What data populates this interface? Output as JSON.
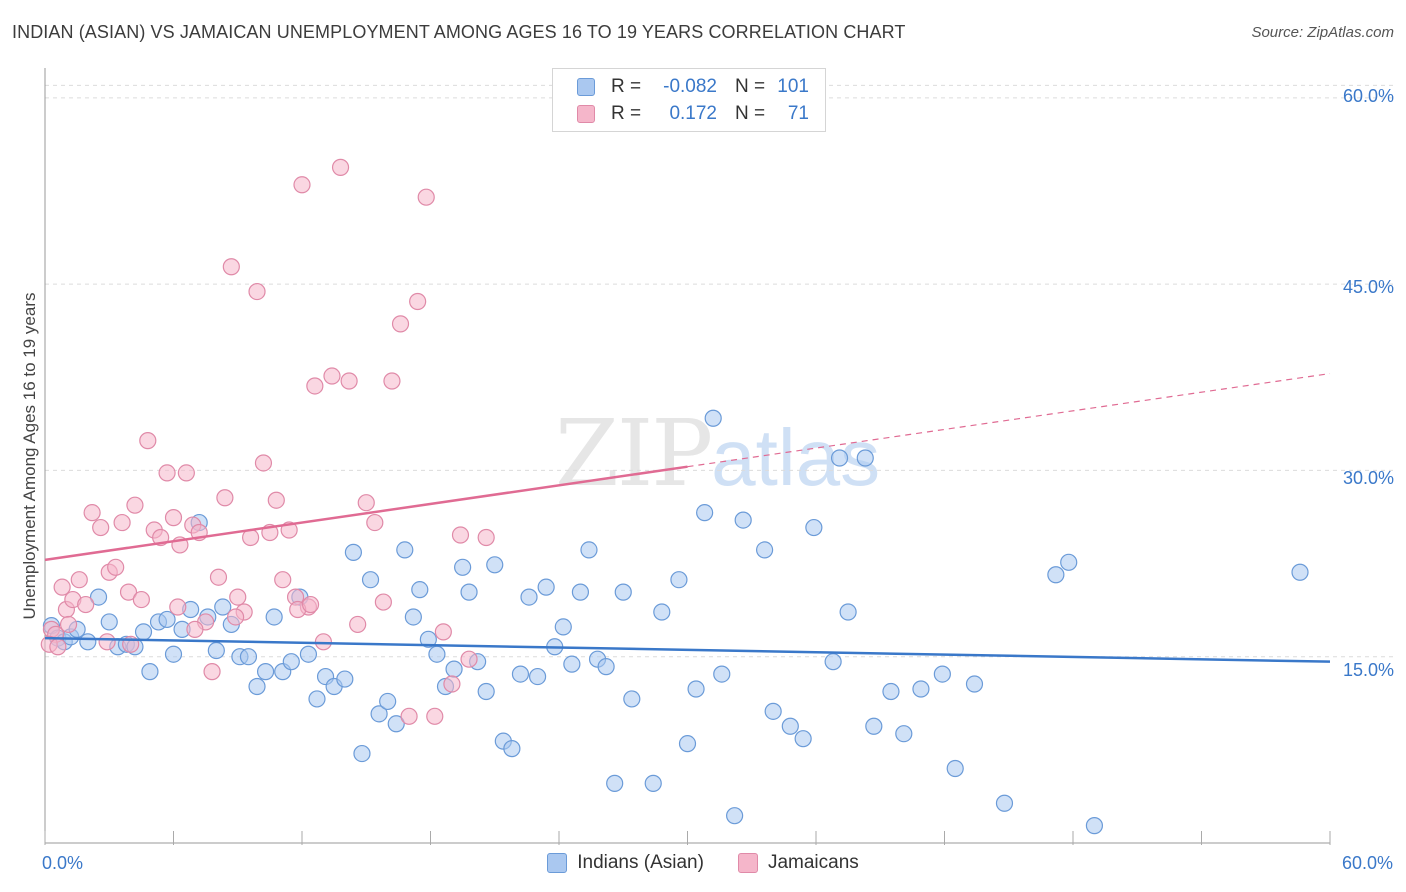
{
  "title": "INDIAN (ASIAN) VS JAMAICAN UNEMPLOYMENT AMONG AGES 16 TO 19 YEARS CORRELATION CHART",
  "source": "Source: ZipAtlas.com",
  "watermark": {
    "zip": "ZIP",
    "atlas": "atlas"
  },
  "colors": {
    "blue": "#3a78c9",
    "blue_fill": "#aac8f0",
    "pink": "#e06b93",
    "pink_fill": "#f5b6ca",
    "grid": "#dddddd"
  },
  "legend": {
    "rows": [
      {
        "r_label": "R =",
        "r_value": "-0.082",
        "n_label": "N =",
        "n_value": "101",
        "color": "#aac8f0",
        "border": "#6b9bd8"
      },
      {
        "r_label": "R =",
        "r_value": "0.172",
        "n_label": "N =",
        "n_value": "71",
        "color": "#f5b6ca",
        "border": "#e08aa8"
      }
    ]
  },
  "chart_data": {
    "type": "scatter",
    "xlabel": "",
    "ylabel": "Unemployment Among Ages 16 to 19 years",
    "xlim": [
      0,
      60
    ],
    "ylim": [
      0,
      62
    ],
    "x_tick_labels": [
      "0.0%",
      "60.0%"
    ],
    "y_tick_labels": [
      "15.0%",
      "30.0%",
      "45.0%",
      "60.0%"
    ],
    "y_ticks": [
      15,
      30,
      45,
      60
    ],
    "grid": true,
    "legend_position": "bottom",
    "series": [
      {
        "name": "Indians (Asian)",
        "color": "#3a78c9",
        "trend": {
          "x": [
            0,
            60
          ],
          "y": [
            16.5,
            14.6
          ]
        },
        "points": [
          [
            0.3,
            17.5
          ],
          [
            0.6,
            16.5
          ],
          [
            0.9,
            16.2
          ],
          [
            1.2,
            16.6
          ],
          [
            1.5,
            17.2
          ],
          [
            2.0,
            16.2
          ],
          [
            2.5,
            19.8
          ],
          [
            3.0,
            17.8
          ],
          [
            3.4,
            15.8
          ],
          [
            3.8,
            16.0
          ],
          [
            4.2,
            15.8
          ],
          [
            4.6,
            17.0
          ],
          [
            4.9,
            13.8
          ],
          [
            5.3,
            17.8
          ],
          [
            5.7,
            18.0
          ],
          [
            6.0,
            15.2
          ],
          [
            6.4,
            17.2
          ],
          [
            6.8,
            18.8
          ],
          [
            7.2,
            25.8
          ],
          [
            7.6,
            18.2
          ],
          [
            8.0,
            15.5
          ],
          [
            8.3,
            19.0
          ],
          [
            8.7,
            17.6
          ],
          [
            9.1,
            15.0
          ],
          [
            9.5,
            15.0
          ],
          [
            9.9,
            12.6
          ],
          [
            10.3,
            13.8
          ],
          [
            10.7,
            18.2
          ],
          [
            11.1,
            13.8
          ],
          [
            11.5,
            14.6
          ],
          [
            11.9,
            19.8
          ],
          [
            12.3,
            15.2
          ],
          [
            12.7,
            11.6
          ],
          [
            13.1,
            13.4
          ],
          [
            13.5,
            12.6
          ],
          [
            14.0,
            13.2
          ],
          [
            14.4,
            23.4
          ],
          [
            14.8,
            7.2
          ],
          [
            15.2,
            21.2
          ],
          [
            15.6,
            10.4
          ],
          [
            16.0,
            11.4
          ],
          [
            16.4,
            9.6
          ],
          [
            16.8,
            23.6
          ],
          [
            17.2,
            18.2
          ],
          [
            17.5,
            20.4
          ],
          [
            17.9,
            16.4
          ],
          [
            18.3,
            15.2
          ],
          [
            18.7,
            12.6
          ],
          [
            19.1,
            14.0
          ],
          [
            19.5,
            22.2
          ],
          [
            19.8,
            20.2
          ],
          [
            20.2,
            14.6
          ],
          [
            20.6,
            12.2
          ],
          [
            21.0,
            22.4
          ],
          [
            21.4,
            8.2
          ],
          [
            21.8,
            7.6
          ],
          [
            22.2,
            13.6
          ],
          [
            22.6,
            19.8
          ],
          [
            23.0,
            13.4
          ],
          [
            23.4,
            20.6
          ],
          [
            23.8,
            15.8
          ],
          [
            24.2,
            17.4
          ],
          [
            24.6,
            14.4
          ],
          [
            25.0,
            20.2
          ],
          [
            25.4,
            23.6
          ],
          [
            25.8,
            14.8
          ],
          [
            26.2,
            14.2
          ],
          [
            26.6,
            4.8
          ],
          [
            27.0,
            20.2
          ],
          [
            27.4,
            11.6
          ],
          [
            28.4,
            4.8
          ],
          [
            28.8,
            18.6
          ],
          [
            29.6,
            21.2
          ],
          [
            30.0,
            8.0
          ],
          [
            30.4,
            12.4
          ],
          [
            30.8,
            26.6
          ],
          [
            31.2,
            34.2
          ],
          [
            31.6,
            13.6
          ],
          [
            32.2,
            2.2
          ],
          [
            32.6,
            26.0
          ],
          [
            33.6,
            23.6
          ],
          [
            34.0,
            10.6
          ],
          [
            34.8,
            9.4
          ],
          [
            35.4,
            8.4
          ],
          [
            35.9,
            25.4
          ],
          [
            36.8,
            14.6
          ],
          [
            37.1,
            31.0
          ],
          [
            37.5,
            18.6
          ],
          [
            38.3,
            31.0
          ],
          [
            38.7,
            9.4
          ],
          [
            39.5,
            12.2
          ],
          [
            40.1,
            8.8
          ],
          [
            40.9,
            12.4
          ],
          [
            41.9,
            13.6
          ],
          [
            42.5,
            6.0
          ],
          [
            43.4,
            12.8
          ],
          [
            44.8,
            3.2
          ],
          [
            47.2,
            21.6
          ],
          [
            47.8,
            22.6
          ],
          [
            49.0,
            1.4
          ],
          [
            58.6,
            21.8
          ]
        ]
      },
      {
        "name": "Jamaicans",
        "color": "#e06b93",
        "trend": {
          "x": [
            0,
            60
          ],
          "y": [
            22.8,
            37.8
          ],
          "solid_until_x": 30
        },
        "points": [
          [
            0.3,
            17.2
          ],
          [
            0.5,
            16.8
          ],
          [
            0.8,
            20.6
          ],
          [
            1.0,
            18.8
          ],
          [
            1.3,
            19.6
          ],
          [
            1.6,
            21.2
          ],
          [
            1.9,
            19.2
          ],
          [
            2.2,
            26.6
          ],
          [
            2.6,
            25.4
          ],
          [
            3.0,
            21.8
          ],
          [
            3.3,
            22.2
          ],
          [
            3.6,
            25.8
          ],
          [
            3.9,
            20.2
          ],
          [
            4.2,
            27.2
          ],
          [
            4.5,
            19.6
          ],
          [
            4.8,
            32.4
          ],
          [
            5.1,
            25.2
          ],
          [
            5.4,
            24.6
          ],
          [
            5.7,
            29.8
          ],
          [
            6.0,
            26.2
          ],
          [
            6.3,
            24.0
          ],
          [
            6.6,
            29.8
          ],
          [
            6.9,
            25.6
          ],
          [
            7.2,
            25.0
          ],
          [
            7.5,
            17.8
          ],
          [
            7.8,
            13.8
          ],
          [
            8.1,
            21.4
          ],
          [
            8.4,
            27.8
          ],
          [
            8.7,
            46.4
          ],
          [
            9.0,
            19.8
          ],
          [
            9.3,
            18.6
          ],
          [
            9.6,
            24.6
          ],
          [
            9.9,
            44.4
          ],
          [
            10.2,
            30.6
          ],
          [
            10.5,
            25.0
          ],
          [
            10.8,
            27.6
          ],
          [
            11.1,
            21.2
          ],
          [
            11.4,
            25.2
          ],
          [
            11.7,
            19.8
          ],
          [
            12.0,
            53.0
          ],
          [
            12.3,
            19.0
          ],
          [
            12.6,
            36.8
          ],
          [
            13.0,
            16.2
          ],
          [
            13.4,
            37.6
          ],
          [
            13.8,
            54.4
          ],
          [
            14.2,
            37.2
          ],
          [
            14.6,
            17.6
          ],
          [
            15.0,
            27.4
          ],
          [
            15.4,
            25.8
          ],
          [
            15.8,
            19.4
          ],
          [
            16.2,
            37.2
          ],
          [
            16.6,
            41.8
          ],
          [
            17.0,
            10.2
          ],
          [
            17.4,
            43.6
          ],
          [
            17.8,
            52.0
          ],
          [
            18.2,
            10.2
          ],
          [
            18.6,
            17.0
          ],
          [
            19.0,
            12.8
          ],
          [
            19.4,
            24.8
          ],
          [
            19.8,
            14.8
          ],
          [
            20.6,
            24.6
          ],
          [
            0.2,
            16.0
          ],
          [
            0.6,
            15.8
          ],
          [
            1.1,
            17.6
          ],
          [
            2.9,
            16.2
          ],
          [
            4.0,
            16.0
          ],
          [
            6.2,
            19.0
          ],
          [
            7.0,
            17.2
          ],
          [
            8.9,
            18.2
          ],
          [
            11.8,
            18.8
          ],
          [
            12.4,
            19.2
          ]
        ]
      }
    ]
  },
  "bottom_legend": [
    {
      "label": "Indians (Asian)",
      "color": "#aac8f0",
      "border": "#6b9bd8"
    },
    {
      "label": "Jamaicans",
      "color": "#f5b6ca",
      "border": "#e08aa8"
    }
  ]
}
